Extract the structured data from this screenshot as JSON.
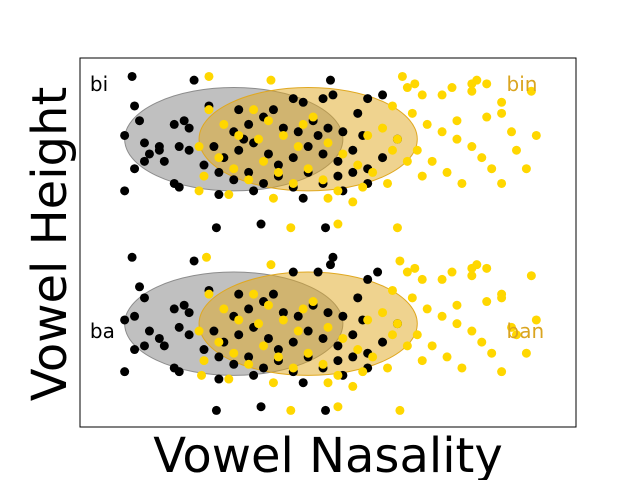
{
  "chart_data": {
    "type": "scatter",
    "xlabel": "Vowel Nasality",
    "ylabel": "Vowel Height",
    "xlim": [
      0,
      10
    ],
    "ylim": [
      0,
      10
    ],
    "grid": false,
    "colors": {
      "oral": "#000000",
      "nasal": "#ffd700",
      "oral_ellipse": "#8c8c8c",
      "nasal_ellipse": "#e0a820",
      "nasal_label": "#daa520"
    },
    "annotations": [
      {
        "text": "bi",
        "x": 0.2,
        "y": 9.3,
        "color": "#000000"
      },
      {
        "text": "bin",
        "x": 8.6,
        "y": 9.3,
        "color": "#daa520"
      },
      {
        "text": "ba",
        "x": 0.2,
        "y": 2.6,
        "color": "#000000"
      },
      {
        "text": "ban",
        "x": 8.6,
        "y": 2.6,
        "color": "#daa520"
      }
    ],
    "ellipses": [
      {
        "group": "bi",
        "series": "oral",
        "cx": 3.1,
        "cy": 7.8,
        "rx": 2.2,
        "ry": 1.4
      },
      {
        "group": "bi",
        "series": "nasal",
        "cx": 4.6,
        "cy": 7.8,
        "rx": 2.2,
        "ry": 1.4
      },
      {
        "group": "ba",
        "series": "oral",
        "cx": 3.1,
        "cy": 2.8,
        "rx": 2.2,
        "ry": 1.4
      },
      {
        "group": "ba",
        "series": "nasal",
        "cx": 4.6,
        "cy": 2.8,
        "rx": 2.2,
        "ry": 1.4
      }
    ],
    "series": [
      {
        "key": "oral",
        "points": [
          [
            1.05,
            9.5
          ],
          [
            2.3,
            9.4
          ],
          [
            5.1,
            9.0
          ],
          [
            5.05,
            9.4
          ],
          [
            6.1,
            9.0
          ],
          [
            5.8,
            8.9
          ],
          [
            4.3,
            8.9
          ],
          [
            4.5,
            8.8
          ],
          [
            4.9,
            8.9
          ],
          [
            1.1,
            8.7
          ],
          [
            1.2,
            8.3
          ],
          [
            0.9,
            7.9
          ],
          [
            1.3,
            7.7
          ],
          [
            1.4,
            7.4
          ],
          [
            1.6,
            7.5
          ],
          [
            1.3,
            7.2
          ],
          [
            1.7,
            7.2
          ],
          [
            1.6,
            7.6
          ],
          [
            1.1,
            7.0
          ],
          [
            0.9,
            6.4
          ],
          [
            2.0,
            7.6
          ],
          [
            2.1,
            8.3
          ],
          [
            1.9,
            8.2
          ],
          [
            2.2,
            8.1
          ],
          [
            2.6,
            8.7
          ],
          [
            3.2,
            8.6
          ],
          [
            3.1,
            8.0
          ],
          [
            3.4,
            8.2
          ],
          [
            3.7,
            8.4
          ],
          [
            3.9,
            8.6
          ],
          [
            4.1,
            8.1
          ],
          [
            4.4,
            8.0
          ],
          [
            4.7,
            8.3
          ],
          [
            5.0,
            8.1
          ],
          [
            5.3,
            8.0
          ],
          [
            5.6,
            8.5
          ],
          [
            2.7,
            7.6
          ],
          [
            2.9,
            7.3
          ],
          [
            3.2,
            7.5
          ],
          [
            3.5,
            7.7
          ],
          [
            3.8,
            7.4
          ],
          [
            4.0,
            7.1
          ],
          [
            4.3,
            7.3
          ],
          [
            4.6,
            7.6
          ],
          [
            4.9,
            7.4
          ],
          [
            5.2,
            7.2
          ],
          [
            5.5,
            7.5
          ],
          [
            5.8,
            7.0
          ],
          [
            6.1,
            7.3
          ],
          [
            6.4,
            7.8
          ],
          [
            2.2,
            7.5
          ],
          [
            2.5,
            7.1
          ],
          [
            2.8,
            6.9
          ],
          [
            3.1,
            6.7
          ],
          [
            3.4,
            6.9
          ],
          [
            3.7,
            6.6
          ],
          [
            4.0,
            6.8
          ],
          [
            4.3,
            6.5
          ],
          [
            4.6,
            6.9
          ],
          [
            4.9,
            6.6
          ],
          [
            5.2,
            6.8
          ],
          [
            5.5,
            6.9
          ],
          [
            5.8,
            6.6
          ],
          [
            2.0,
            6.5
          ],
          [
            1.9,
            6.6
          ],
          [
            2.8,
            6.3
          ],
          [
            3.5,
            6.4
          ],
          [
            4.5,
            6.2
          ],
          [
            5.3,
            6.4
          ],
          [
            5.7,
            7.9
          ],
          [
            4.8,
            7.9
          ],
          [
            3.3,
            7.8
          ],
          [
            2.75,
            5.4
          ],
          [
            3.65,
            5.5
          ],
          [
            4.95,
            5.4
          ],
          [
            5.1,
            4.6
          ],
          [
            5.05,
            4.4
          ],
          [
            4.3,
            4.2
          ],
          [
            4.8,
            4.2
          ],
          [
            6.0,
            4.2
          ],
          [
            5.8,
            4.0
          ],
          [
            1.05,
            4.6
          ],
          [
            2.3,
            4.5
          ],
          [
            1.2,
            3.8
          ],
          [
            1.3,
            3.5
          ],
          [
            1.1,
            3.0
          ],
          [
            0.9,
            2.9
          ],
          [
            1.4,
            2.6
          ],
          [
            1.6,
            2.4
          ],
          [
            1.3,
            2.2
          ],
          [
            1.7,
            2.2
          ],
          [
            1.1,
            2.1
          ],
          [
            0.9,
            1.5
          ],
          [
            2.0,
            2.7
          ],
          [
            2.1,
            3.3
          ],
          [
            1.9,
            3.2
          ],
          [
            2.2,
            3.1
          ],
          [
            2.6,
            3.7
          ],
          [
            3.2,
            3.6
          ],
          [
            3.1,
            3.0
          ],
          [
            3.4,
            3.2
          ],
          [
            3.7,
            3.4
          ],
          [
            3.9,
            3.6
          ],
          [
            4.1,
            3.1
          ],
          [
            4.4,
            3.0
          ],
          [
            4.7,
            3.3
          ],
          [
            5.0,
            3.1
          ],
          [
            5.3,
            3.0
          ],
          [
            5.6,
            3.5
          ],
          [
            2.7,
            2.6
          ],
          [
            2.9,
            2.3
          ],
          [
            3.2,
            2.5
          ],
          [
            3.5,
            2.7
          ],
          [
            3.8,
            2.4
          ],
          [
            4.0,
            2.1
          ],
          [
            4.3,
            2.3
          ],
          [
            4.6,
            2.6
          ],
          [
            4.9,
            2.4
          ],
          [
            5.2,
            2.2
          ],
          [
            5.5,
            2.5
          ],
          [
            5.8,
            2.0
          ],
          [
            6.1,
            2.3
          ],
          [
            6.4,
            2.8
          ],
          [
            2.2,
            2.5
          ],
          [
            2.5,
            2.1
          ],
          [
            2.8,
            1.9
          ],
          [
            3.1,
            1.7
          ],
          [
            3.4,
            1.9
          ],
          [
            3.7,
            1.6
          ],
          [
            4.0,
            1.8
          ],
          [
            4.3,
            1.5
          ],
          [
            4.6,
            1.9
          ],
          [
            4.9,
            1.6
          ],
          [
            5.2,
            1.8
          ],
          [
            5.5,
            1.9
          ],
          [
            5.8,
            1.6
          ],
          [
            2.0,
            1.5
          ],
          [
            1.9,
            1.6
          ],
          [
            2.8,
            1.3
          ],
          [
            3.5,
            1.4
          ],
          [
            4.5,
            1.2
          ],
          [
            5.3,
            1.4
          ],
          [
            5.7,
            2.9
          ],
          [
            2.75,
            0.45
          ],
          [
            3.65,
            0.55
          ],
          [
            4.95,
            0.45
          ]
        ]
      },
      {
        "key": "nasal",
        "points": [
          [
            2.6,
            9.5
          ],
          [
            3.85,
            9.4
          ],
          [
            6.5,
            9.5
          ],
          [
            6.75,
            9.3
          ],
          [
            8.0,
            9.4
          ],
          [
            6.6,
            9.2
          ],
          [
            6.9,
            9.0
          ],
          [
            7.3,
            9.0
          ],
          [
            7.5,
            9.2
          ],
          [
            7.9,
            9.3
          ],
          [
            7.9,
            9.1
          ],
          [
            8.2,
            9.3
          ],
          [
            8.5,
            8.8
          ],
          [
            9.1,
            9.1
          ],
          [
            7.6,
            8.3
          ],
          [
            8.2,
            8.4
          ],
          [
            8.5,
            8.5
          ],
          [
            8.7,
            8.0
          ],
          [
            6.3,
            8.7
          ],
          [
            6.7,
            8.5
          ],
          [
            7.0,
            8.2
          ],
          [
            7.3,
            8.0
          ],
          [
            7.6,
            7.8
          ],
          [
            7.9,
            7.6
          ],
          [
            8.1,
            7.3
          ],
          [
            8.3,
            7.0
          ],
          [
            8.5,
            6.6
          ],
          [
            8.8,
            7.5
          ],
          [
            9.2,
            7.9
          ],
          [
            9.0,
            7.0
          ],
          [
            6.1,
            8.1
          ],
          [
            6.4,
            7.8
          ],
          [
            6.8,
            7.5
          ],
          [
            7.1,
            7.2
          ],
          [
            7.4,
            6.9
          ],
          [
            7.7,
            6.6
          ],
          [
            2.6,
            8.6
          ],
          [
            2.9,
            8.2
          ],
          [
            3.2,
            7.9
          ],
          [
            3.5,
            8.6
          ],
          [
            3.8,
            8.3
          ],
          [
            4.1,
            7.9
          ],
          [
            4.4,
            7.6
          ],
          [
            4.7,
            8.4
          ],
          [
            5.0,
            7.7
          ],
          [
            5.3,
            7.4
          ],
          [
            5.6,
            7.1
          ],
          [
            5.9,
            6.9
          ],
          [
            2.8,
            7.3
          ],
          [
            3.1,
            7.0
          ],
          [
            3.4,
            6.7
          ],
          [
            3.7,
            7.2
          ],
          [
            4.0,
            6.9
          ],
          [
            4.3,
            6.6
          ],
          [
            4.6,
            7.0
          ],
          [
            4.9,
            6.7
          ],
          [
            5.2,
            6.4
          ],
          [
            5.5,
            6.1
          ],
          [
            2.4,
            7.6
          ],
          [
            2.5,
            6.8
          ],
          [
            2.4,
            6.4
          ],
          [
            3.0,
            6.3
          ],
          [
            3.9,
            6.2
          ],
          [
            5.0,
            6.2
          ],
          [
            5.7,
            6.5
          ],
          [
            6.2,
            6.6
          ],
          [
            6.6,
            7.2
          ],
          [
            6.9,
            6.8
          ],
          [
            6.3,
            7.5
          ],
          [
            5.8,
            7.9
          ],
          [
            4.5,
            8.2
          ],
          [
            3.6,
            7.8
          ],
          [
            4.25,
            5.4
          ],
          [
            5.2,
            5.5
          ],
          [
            6.4,
            5.4
          ],
          [
            2.55,
            4.6
          ],
          [
            3.85,
            4.4
          ],
          [
            6.45,
            4.5
          ],
          [
            6.75,
            4.3
          ],
          [
            8.0,
            4.4
          ],
          [
            6.6,
            4.2
          ],
          [
            6.9,
            4.0
          ],
          [
            7.3,
            4.0
          ],
          [
            7.5,
            4.2
          ],
          [
            7.9,
            4.3
          ],
          [
            7.9,
            4.1
          ],
          [
            8.2,
            4.3
          ],
          [
            8.5,
            3.6
          ],
          [
            9.1,
            4.1
          ],
          [
            7.6,
            3.3
          ],
          [
            8.2,
            3.4
          ],
          [
            8.5,
            3.5
          ],
          [
            8.7,
            2.7
          ],
          [
            6.3,
            3.7
          ],
          [
            6.7,
            3.5
          ],
          [
            7.0,
            3.2
          ],
          [
            7.3,
            3.0
          ],
          [
            7.6,
            2.8
          ],
          [
            7.9,
            2.6
          ],
          [
            8.1,
            2.3
          ],
          [
            8.3,
            2.0
          ],
          [
            8.5,
            1.5
          ],
          [
            8.8,
            2.5
          ],
          [
            9.2,
            2.9
          ],
          [
            9.0,
            2.0
          ],
          [
            6.1,
            3.1
          ],
          [
            6.4,
            2.8
          ],
          [
            6.8,
            2.5
          ],
          [
            7.1,
            2.2
          ],
          [
            7.4,
            1.9
          ],
          [
            7.7,
            1.6
          ],
          [
            2.6,
            3.6
          ],
          [
            2.9,
            3.2
          ],
          [
            3.2,
            2.9
          ],
          [
            3.5,
            3.6
          ],
          [
            3.8,
            3.3
          ],
          [
            4.1,
            2.9
          ],
          [
            4.4,
            2.6
          ],
          [
            4.7,
            3.4
          ],
          [
            5.0,
            2.7
          ],
          [
            5.3,
            2.4
          ],
          [
            5.6,
            2.1
          ],
          [
            5.9,
            1.9
          ],
          [
            2.8,
            2.3
          ],
          [
            3.1,
            2.0
          ],
          [
            3.4,
            1.7
          ],
          [
            3.7,
            2.2
          ],
          [
            4.0,
            1.9
          ],
          [
            4.3,
            1.6
          ],
          [
            4.6,
            2.0
          ],
          [
            4.9,
            1.7
          ],
          [
            5.2,
            1.4
          ],
          [
            5.5,
            1.1
          ],
          [
            2.4,
            2.6
          ],
          [
            2.5,
            1.8
          ],
          [
            2.45,
            1.4
          ],
          [
            3.0,
            1.3
          ],
          [
            3.9,
            1.2
          ],
          [
            5.0,
            1.2
          ],
          [
            5.7,
            1.5
          ],
          [
            6.2,
            1.6
          ],
          [
            6.6,
            2.2
          ],
          [
            6.9,
            1.8
          ],
          [
            6.3,
            2.5
          ],
          [
            5.8,
            2.9
          ],
          [
            4.5,
            3.2
          ],
          [
            3.6,
            2.8
          ],
          [
            4.25,
            0.45
          ],
          [
            5.2,
            0.55
          ],
          [
            6.45,
            0.45
          ]
        ]
      }
    ]
  }
}
